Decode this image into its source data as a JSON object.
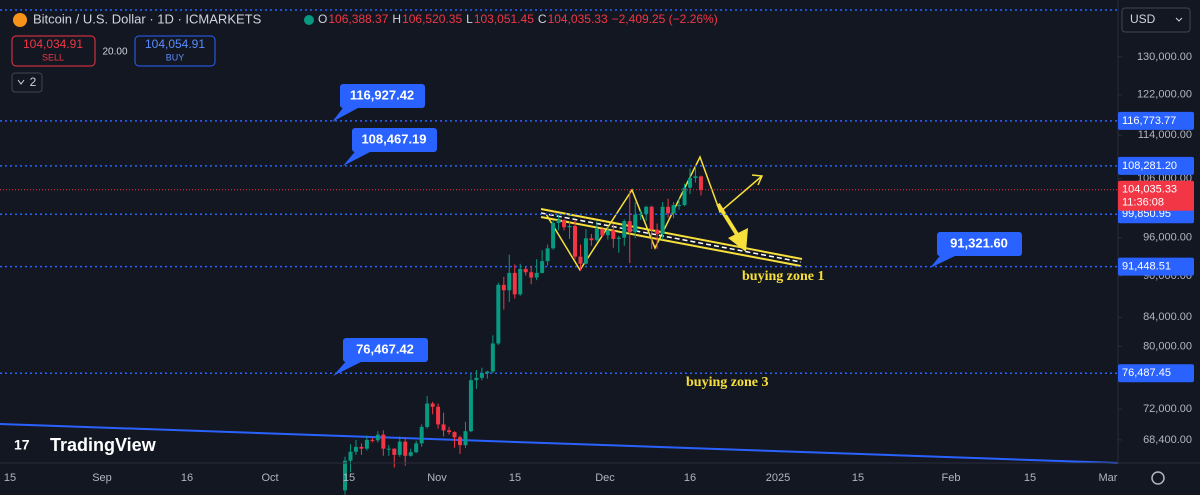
{
  "header": {
    "symbol": "Bitcoin / U.S. Dollar · 1D · ICMARKETS",
    "ohlc": [
      {
        "key": "O",
        "value": "106,388.37"
      },
      {
        "key": "H",
        "value": "106,520.35"
      },
      {
        "key": "L",
        "value": "103,051.45"
      },
      {
        "key": "C",
        "value": "104,035.33"
      }
    ],
    "change": "−2,409.25 (−2.26%)",
    "sell": {
      "price": "104,034.91",
      "label": "SELL"
    },
    "spread": "20.00",
    "buy": {
      "price": "104,054.91",
      "label": "BUY"
    },
    "layers": "2",
    "currency": "USD"
  },
  "logo": "TradingView",
  "chart_data": {
    "type": "candlestick",
    "log_scale": true,
    "ylim": [
      65800,
      143000
    ],
    "yticks": [
      {
        "value": 130000,
        "label": "130,000.00"
      },
      {
        "value": 122000,
        "label": "122,000.00"
      },
      {
        "value": 114000,
        "label": "114,000.00"
      },
      {
        "value": 106000,
        "label": "106,000.00"
      },
      {
        "value": 96000,
        "label": "96,000.00"
      },
      {
        "value": 90000,
        "label": "90,000.00"
      },
      {
        "value": 84000,
        "label": "84,000.00"
      },
      {
        "value": 80000,
        "label": "80,000.00"
      },
      {
        "value": 72000,
        "label": "72,000.00"
      },
      {
        "value": 68400,
        "label": "68,400.00"
      }
    ],
    "x_labels": [
      "15",
      "Sep",
      "16",
      "Oct",
      "15",
      "Nov",
      "15",
      "Dec",
      "16",
      "2025",
      "15",
      "Feb",
      "15",
      "Mar"
    ],
    "up_color": "#089981",
    "down_color": "#f23645",
    "open": [
      62850,
      66050,
      67050,
      67600,
      67400,
      68400,
      68350,
      69000,
      67400,
      67400,
      66700,
      68200,
      66600,
      67000,
      68000,
      69900,
      72700,
      72300,
      70200,
      69500,
      69300,
      68700,
      67800,
      69400,
      75600,
      75900,
      76500,
      76700,
      80400,
      88700,
      87900,
      90500,
      87300,
      91100,
      90600,
      89800,
      90500,
      92300,
      94300,
      98400,
      98900,
      97700,
      97900,
      93000,
      91900,
      95900,
      95600,
      97400,
      96400,
      97200,
      95800,
      96000,
      98700,
      96900,
      99800,
      99900,
      101100,
      97300,
      96600,
      101100,
      100000,
      101400,
      101400,
      104400,
      106100,
      106388.37
    ],
    "high": [
      66500,
      67900,
      68400,
      68000,
      68900,
      68650,
      69400,
      69500,
      67800,
      67450,
      68800,
      68700,
      67400,
      68300,
      70200,
      73600,
      72900,
      72700,
      71600,
      69900,
      69400,
      68900,
      70500,
      76400,
      76900,
      77200,
      76800,
      81500,
      89000,
      89900,
      93300,
      91800,
      91900,
      91500,
      91500,
      92600,
      94000,
      94900,
      98900,
      99800,
      99000,
      98600,
      98800,
      94900,
      97400,
      96600,
      98700,
      97500,
      97900,
      98200,
      96300,
      99000,
      103900,
      101900,
      100500,
      101300,
      101300,
      98300,
      101900,
      102500,
      101900,
      102600,
      105100,
      107800,
      108300,
      106520.35
    ],
    "low": [
      62400,
      64800,
      66700,
      66700,
      67200,
      68100,
      68100,
      66600,
      66600,
      65300,
      66500,
      65500,
      66500,
      66900,
      67600,
      69700,
      71400,
      69700,
      68800,
      69000,
      67500,
      66800,
      67500,
      69300,
      74500,
      75600,
      75800,
      76500,
      80200,
      85100,
      86200,
      86700,
      87100,
      90100,
      88800,
      89400,
      90400,
      91600,
      94100,
      97200,
      97200,
      95800,
      92600,
      90800,
      91800,
      94700,
      95400,
      96100,
      95700,
      94400,
      93600,
      94700,
      92000,
      95900,
      98900,
      98700,
      94200,
      94200,
      95700,
      99300,
      99200,
      100600,
      101200,
      103300,
      105300,
      103051.45
    ],
    "close": [
      66050,
      67050,
      67600,
      67400,
      68400,
      68350,
      69000,
      67400,
      67400,
      66700,
      68200,
      66600,
      67000,
      68000,
      69900,
      72700,
      72300,
      70200,
      69500,
      69300,
      68700,
      67800,
      69400,
      75600,
      75900,
      76500,
      76700,
      80400,
      88700,
      87900,
      90500,
      87300,
      91100,
      90600,
      89800,
      90500,
      92300,
      94300,
      98400,
      98900,
      97700,
      97900,
      93000,
      91900,
      95900,
      95600,
      97400,
      96400,
      97200,
      95800,
      96000,
      98700,
      96900,
      99800,
      99900,
      101100,
      97300,
      96600,
      101100,
      100000,
      101400,
      101400,
      104400,
      106100,
      106400,
      104035.33
    ],
    "price_lines": [
      {
        "value": 116773.77,
        "label": "116,773.77"
      },
      {
        "value": 108281.2,
        "label": "108,281.20"
      },
      {
        "value": 99850.95,
        "label": "99,850.95"
      },
      {
        "value": 91448.51,
        "label": "91,448.51"
      },
      {
        "value": 76487.45,
        "label": "76,487.45"
      }
    ],
    "current_price": {
      "value": 104035.33,
      "label": "104,035.33",
      "countdown": "11:36:08"
    },
    "callouts": [
      "116,927.42",
      "108,467.19",
      "91,321.60",
      "76,467.42"
    ],
    "annotations": [
      "buying zone 1",
      "buying zone 3"
    ]
  }
}
